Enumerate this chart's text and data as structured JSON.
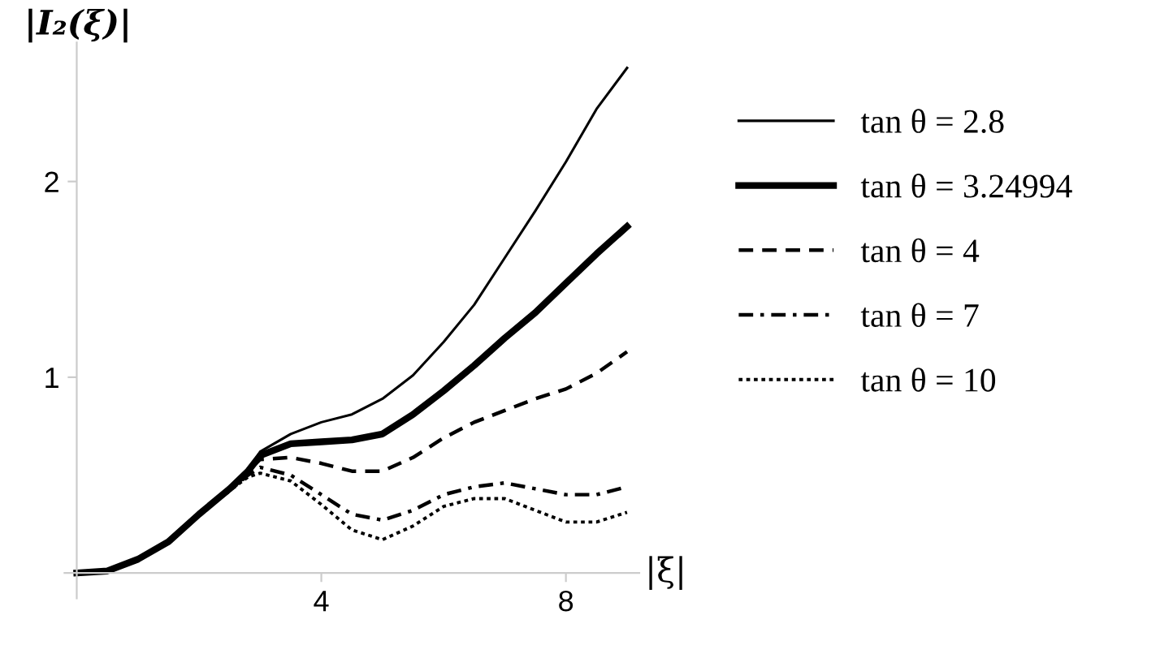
{
  "chart_data": {
    "type": "line",
    "xlabel": "|ξ|",
    "ylabel": "|I₂(ξ)|",
    "x": [
      0,
      0.5,
      1,
      1.5,
      2,
      2.5,
      2.8,
      3,
      3.5,
      4,
      4.5,
      5,
      5.5,
      6,
      6.5,
      7,
      7.5,
      8,
      8.5,
      9
    ],
    "xlim": [
      -0.2,
      9.2
    ],
    "ylim": [
      -0.13,
      2.71
    ],
    "xticks": [
      4,
      8
    ],
    "yticks": [
      1,
      2
    ],
    "grid": false,
    "legend": "right",
    "series": [
      {
        "name": "tan θ = 2.8",
        "color": "#000000",
        "line_style": "solid",
        "values": [
          0,
          0.01,
          0.07,
          0.16,
          0.3,
          0.43,
          0.52,
          0.62,
          0.71,
          0.77,
          0.81,
          0.89,
          1.01,
          1.18,
          1.37,
          1.61,
          1.85,
          2.1,
          2.37,
          2.58
        ]
      },
      {
        "name": "tan θ = 3.24994",
        "color": "#000000",
        "line_style": "solid",
        "values": [
          0,
          0.01,
          0.07,
          0.16,
          0.3,
          0.43,
          0.52,
          0.6,
          0.66,
          0.67,
          0.68,
          0.71,
          0.81,
          0.93,
          1.06,
          1.2,
          1.33,
          1.48,
          1.63,
          1.77
        ]
      },
      {
        "name": "tan θ = 4",
        "color": "#000000",
        "line_style": "dashed",
        "values": [
          0,
          0.01,
          0.07,
          0.16,
          0.3,
          0.43,
          0.52,
          0.58,
          0.59,
          0.56,
          0.52,
          0.52,
          0.59,
          0.69,
          0.77,
          0.83,
          0.89,
          0.94,
          1.02,
          1.13
        ]
      },
      {
        "name": "tan θ = 7",
        "color": "#000000",
        "line_style": "dashdot",
        "values": [
          0,
          0.01,
          0.07,
          0.16,
          0.3,
          0.42,
          0.5,
          0.54,
          0.5,
          0.4,
          0.3,
          0.27,
          0.32,
          0.4,
          0.44,
          0.46,
          0.43,
          0.4,
          0.4,
          0.44
        ]
      },
      {
        "name": "tan θ = 10",
        "color": "#000000",
        "line_style": "dotted",
        "values": [
          0,
          0.01,
          0.07,
          0.16,
          0.3,
          0.42,
          0.49,
          0.51,
          0.47,
          0.35,
          0.22,
          0.17,
          0.24,
          0.34,
          0.38,
          0.38,
          0.32,
          0.26,
          0.26,
          0.31
        ]
      }
    ]
  }
}
